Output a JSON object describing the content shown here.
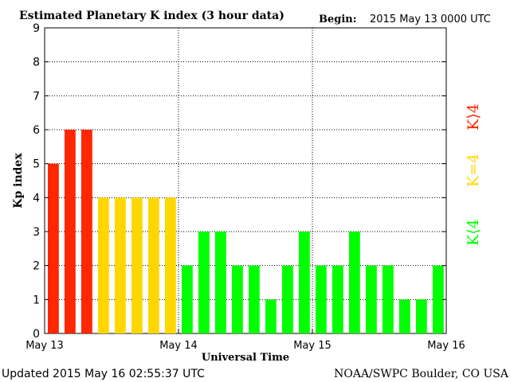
{
  "chart_data": {
    "type": "bar",
    "title": "Estimated Planetary K index (3 hour data)",
    "begin_label": "Begin:",
    "begin_value": "2015 May 13 0000 UTC",
    "xlabel": "Universal Time",
    "ylabel": "Kp index",
    "ylim": [
      0,
      9
    ],
    "yticks": [
      "0",
      "1",
      "2",
      "3",
      "4",
      "5",
      "6",
      "7",
      "8",
      "9"
    ],
    "xticks": [
      "May 13",
      "May 14",
      "May 15",
      "May 16"
    ],
    "grid": true,
    "values": [
      5,
      6,
      6,
      4,
      4,
      4,
      4,
      4,
      2,
      3,
      3,
      2,
      2,
      1,
      2,
      3,
      2,
      2,
      3,
      2,
      2,
      1,
      1,
      2
    ],
    "colors": {
      "kp_gt_4": "#ff2600",
      "kp_eq_4": "#ffd700",
      "kp_lt_4": "#00ff00"
    },
    "legend": {
      "gt": "K⟩4",
      "eq": "K=4",
      "lt": "K⟨4"
    }
  },
  "footer": {
    "updated": "Updated 2015 May 16 02:55:37 UTC",
    "source": "NOAA/SWPC Boulder, CO USA"
  }
}
